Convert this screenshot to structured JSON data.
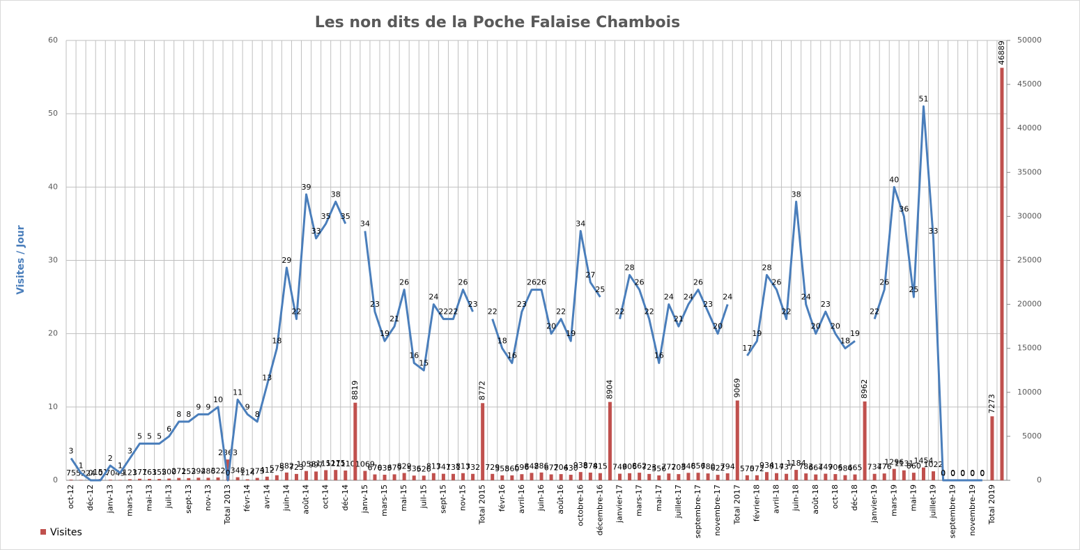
{
  "chart_data": {
    "type": "bar-line",
    "title": "Les non dits de la Poche Falaise Chambois",
    "y_label": "Visites / Jour",
    "categories": [
      "oct-12",
      null,
      "déc-12",
      null,
      "janv-13",
      null,
      "mars-13",
      null,
      "mai-13",
      null,
      "juil-13",
      null,
      "sept-13",
      null,
      "nov-13",
      null,
      "Total 2013",
      null,
      "févr-14",
      null,
      "avr-14",
      null,
      "juin-14",
      null,
      "août-14",
      null,
      "oct-14",
      null,
      "déc-14",
      null,
      "janv-15",
      null,
      "mars-15",
      null,
      "mai-15",
      null,
      "juil-15",
      null,
      "sept-15",
      null,
      "nov-15",
      null,
      "Total 2015",
      null,
      "févr-16",
      null,
      "avril-16",
      null,
      "juin-16",
      null,
      "août-16",
      null,
      "octobre-16",
      null,
      "décembre-16",
      null,
      "janvier-17",
      null,
      "mars-17",
      null,
      "mai-17",
      null,
      "juillet-17",
      null,
      "septembre-17",
      null,
      "novembre-17",
      null,
      "Total 2017",
      null,
      "février-18",
      null,
      "avril-18",
      null,
      "juin-18",
      null,
      "août-18",
      null,
      "oct-18",
      null,
      "déc-18",
      null,
      "janvier-19",
      null,
      "mars-19",
      null,
      "mai-19",
      null,
      "juillet-19",
      null,
      "septembre-19",
      null,
      "novembre-19",
      null,
      "Total 2019",
      null
    ],
    "series": [
      {
        "name": "Visites",
        "type": "bar",
        "axis": "y2",
        "color": "#c0504d",
        "values": [
          75,
          52,
          24,
          151,
          70,
          49,
          123,
          177,
          163,
          155,
          200,
          271,
          253,
          294,
          286,
          322,
          2363,
          348,
          114,
          273,
          412,
          575,
          882,
          723,
          1058,
          997,
          1152,
          1175,
          1110,
          8819,
          1069,
          670,
          633,
          679,
          829,
          536,
          526,
          813,
          741,
          731,
          813,
          732,
          8772,
          729,
          558,
          560,
          696,
          842,
          886,
          672,
          704,
          630,
          938,
          874,
          815,
          8904,
          749,
          806,
          862,
          723,
          556,
          772,
          703,
          846,
          856,
          780,
          622,
          794,
          9069,
          570,
          572,
          934,
          814,
          737,
          1184,
          783,
          664,
          749,
          706,
          584,
          665,
          8962,
          734,
          776,
          1296,
          1131,
          860,
          1454,
          1022,
          0,
          0,
          0,
          0,
          0,
          7273,
          46889
        ]
      },
      {
        "type": "line",
        "axis": "y",
        "color": "#4a7ebb",
        "values": [
          3,
          1,
          0,
          0,
          2,
          1,
          3,
          5,
          5,
          5,
          6,
          8,
          8,
          9,
          9,
          10,
          0,
          11,
          9,
          8,
          13,
          18,
          29,
          22,
          39,
          33,
          35,
          38,
          35,
          null,
          34,
          23,
          19,
          21,
          26,
          16,
          15,
          24,
          22,
          22,
          26,
          23,
          null,
          22,
          18,
          16,
          23,
          26,
          26,
          20,
          22,
          19,
          34,
          27,
          25,
          null,
          22,
          28,
          26,
          22,
          16,
          24,
          21,
          24,
          26,
          23,
          20,
          24,
          null,
          17,
          19,
          28,
          26,
          22,
          38,
          24,
          20,
          23,
          20,
          18,
          19,
          null,
          22,
          26,
          40,
          36,
          25,
          51,
          33,
          0,
          0,
          0,
          0,
          0,
          null,
          null
        ]
      }
    ],
    "ylim": [
      0,
      60
    ],
    "yticks": [
      0,
      10,
      20,
      30,
      40,
      50,
      60
    ],
    "y2lim": [
      0,
      50000
    ],
    "y2ticks": [
      0,
      5000,
      10000,
      15000,
      20000,
      25000,
      30000,
      35000,
      40000,
      45000,
      50000
    ],
    "grid": true,
    "legend": "bottom-left"
  }
}
